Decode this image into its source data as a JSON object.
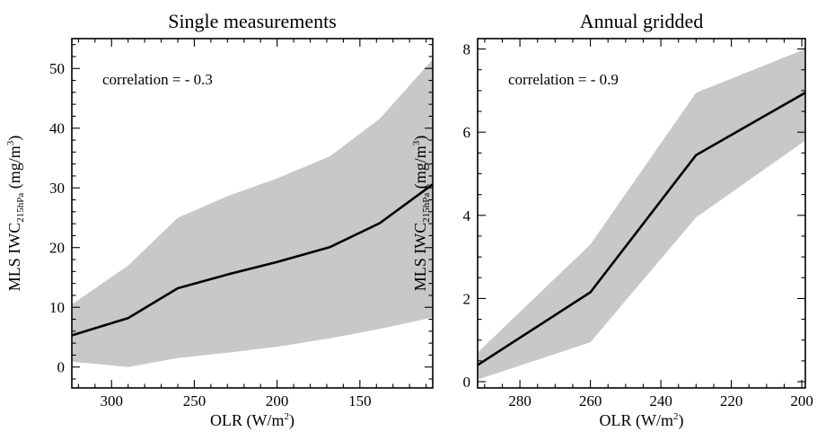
{
  "chart_data": [
    {
      "type": "area",
      "title": "Single measurements",
      "xlabel": {
        "main": "OLR (W/m",
        "sup": "2",
        "close": ")"
      },
      "ylabel": {
        "main": "MLS IWC",
        "sub": "215hPa",
        "rest": " (mg/m",
        "sup": "3",
        "close": ")"
      },
      "annotation": "correlation = - 0.3",
      "xlim": [
        324,
        106
      ],
      "ylim": [
        -3.5,
        55
      ],
      "x_reversed": true,
      "x_ticks": [
        300,
        250,
        200,
        150
      ],
      "x_tick_labels": [
        "300",
        "250",
        "200",
        "150"
      ],
      "y_ticks": [
        0,
        10,
        20,
        30,
        40,
        50
      ],
      "y_tick_labels": [
        "0",
        "10",
        "20",
        "30",
        "40",
        "50"
      ],
      "series": [
        {
          "role": "mean",
          "x": [
            324,
            290,
            260,
            230,
            200,
            168,
            138,
            106
          ],
          "y": [
            5.3,
            8.2,
            13.2,
            15.5,
            17.6,
            20.1,
            24.1,
            30.6
          ]
        },
        {
          "role": "upper-band",
          "x": [
            324,
            290,
            260,
            230,
            200,
            168,
            138,
            106
          ],
          "y": [
            10.5,
            17.0,
            25.0,
            28.6,
            31.6,
            35.3,
            41.6,
            51.5
          ]
        },
        {
          "role": "lower-band",
          "x": [
            324,
            290,
            260,
            230,
            200,
            168,
            138,
            106
          ],
          "y": [
            0.9,
            0.0,
            1.5,
            2.4,
            3.4,
            4.8,
            6.4,
            8.3
          ]
        }
      ],
      "colors": {
        "band": "#c8c8c8",
        "line": "#000000"
      },
      "grid": false
    },
    {
      "type": "area",
      "title": "Annual gridded",
      "xlabel": {
        "main": "OLR (W/m",
        "sup": "2",
        "close": ")"
      },
      "ylabel": {
        "main": "MLS IWC",
        "sub": "215hPa",
        "rest": " (mg/m",
        "sup": "3",
        "close": ")"
      },
      "annotation": "correlation = - 0.9",
      "xlim": [
        292,
        199
      ],
      "ylim": [
        -0.15,
        8.25
      ],
      "x_reversed": true,
      "x_ticks": [
        280,
        260,
        240,
        220,
        200
      ],
      "x_tick_labels": [
        "280",
        "260",
        "240",
        "220",
        "200"
      ],
      "y_ticks": [
        0,
        2,
        4,
        6,
        8
      ],
      "y_tick_labels": [
        "0",
        "2",
        "4",
        "6",
        "8"
      ],
      "series": [
        {
          "role": "mean",
          "x": [
            292,
            260,
            230,
            199
          ],
          "y": [
            0.4,
            2.15,
            5.45,
            6.95
          ]
        },
        {
          "role": "upper-band",
          "x": [
            292,
            260,
            230,
            199
          ],
          "y": [
            0.7,
            3.3,
            6.95,
            8.0
          ]
        },
        {
          "role": "lower-band",
          "x": [
            292,
            260,
            230,
            199
          ],
          "y": [
            0.05,
            0.95,
            3.95,
            5.8
          ]
        }
      ],
      "colors": {
        "band": "#c8c8c8",
        "line": "#000000"
      },
      "grid": false
    }
  ]
}
